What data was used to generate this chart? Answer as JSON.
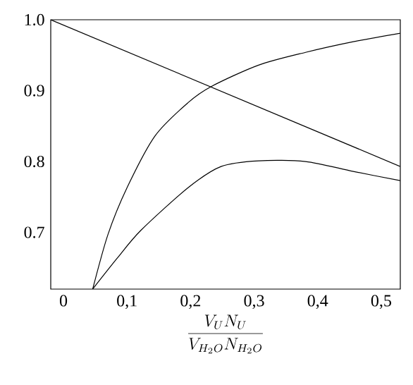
{
  "chart_data": {
    "type": "line",
    "xlabel": "\\frac{V_U N_U}{V_{H_2O} N_{H_2O}}",
    "xlim": [
      -0.02,
      0.53
    ],
    "ylim": [
      0.62,
      1.0
    ],
    "xticks": [
      {
        "value": 0,
        "label": "0"
      },
      {
        "value": 0.1,
        "label": "0,1"
      },
      {
        "value": 0.2,
        "label": "0,2"
      },
      {
        "value": 0.3,
        "label": "0,3"
      },
      {
        "value": 0.4,
        "label": "0,4"
      },
      {
        "value": 0.5,
        "label": "0,5"
      }
    ],
    "yticks": [
      {
        "value": 0.7,
        "label": "0.7"
      },
      {
        "value": 0.8,
        "label": "0.8"
      },
      {
        "value": 0.9,
        "label": "0.9"
      },
      {
        "value": 1.0,
        "label": "1.0"
      }
    ],
    "grid": false,
    "marker": "none",
    "line_style": "solid",
    "series": [
      {
        "color": "#000000",
        "x": [
          -0.02,
          0.53
        ],
        "values": [
          1.0,
          0.793
        ]
      },
      {
        "color": "#000000",
        "x": [
          0.046,
          0.07,
          0.1,
          0.144,
          0.196,
          0.233,
          0.307,
          0.381,
          0.456,
          0.53
        ],
        "values": [
          0.62,
          0.697,
          0.763,
          0.836,
          0.883,
          0.906,
          0.936,
          0.954,
          0.969,
          0.981
        ]
      },
      {
        "color": "#000000",
        "x": [
          0.046,
          0.085,
          0.122,
          0.196,
          0.248,
          0.307,
          0.381,
          0.456,
          0.53
        ],
        "values": [
          0.62,
          0.664,
          0.703,
          0.763,
          0.793,
          0.801,
          0.8,
          0.786,
          0.773
        ]
      }
    ]
  }
}
